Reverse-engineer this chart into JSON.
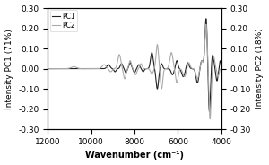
{
  "title": "",
  "xlabel": "Wavenumber (cm⁻¹)",
  "ylabel_left": "Intensity PC1 (71%)",
  "ylabel_right": "Intensity PC2 (18%)",
  "xlim": [
    12000,
    4000
  ],
  "ylim": [
    -0.3,
    0.3
  ],
  "xticks": [
    12000,
    10000,
    8000,
    6000,
    4000
  ],
  "yticks": [
    -0.3,
    -0.2,
    -0.1,
    0.0,
    0.1,
    0.2,
    0.3
  ],
  "ytick_labels": [
    "-0.30",
    "-0.20",
    "-0.10",
    "0.00",
    "0.10",
    "0.20",
    "0.30"
  ],
  "legend_labels": [
    "PC1",
    "PC2"
  ],
  "pc1_color": "#222222",
  "pc2_color": "#aaaaaa",
  "background_color": "#ffffff",
  "fontsize": 6.5,
  "legend_fontsize": 5.5,
  "xlabel_fontsize": 7,
  "linewidth_pc1": 0.8,
  "linewidth_pc2": 0.8
}
